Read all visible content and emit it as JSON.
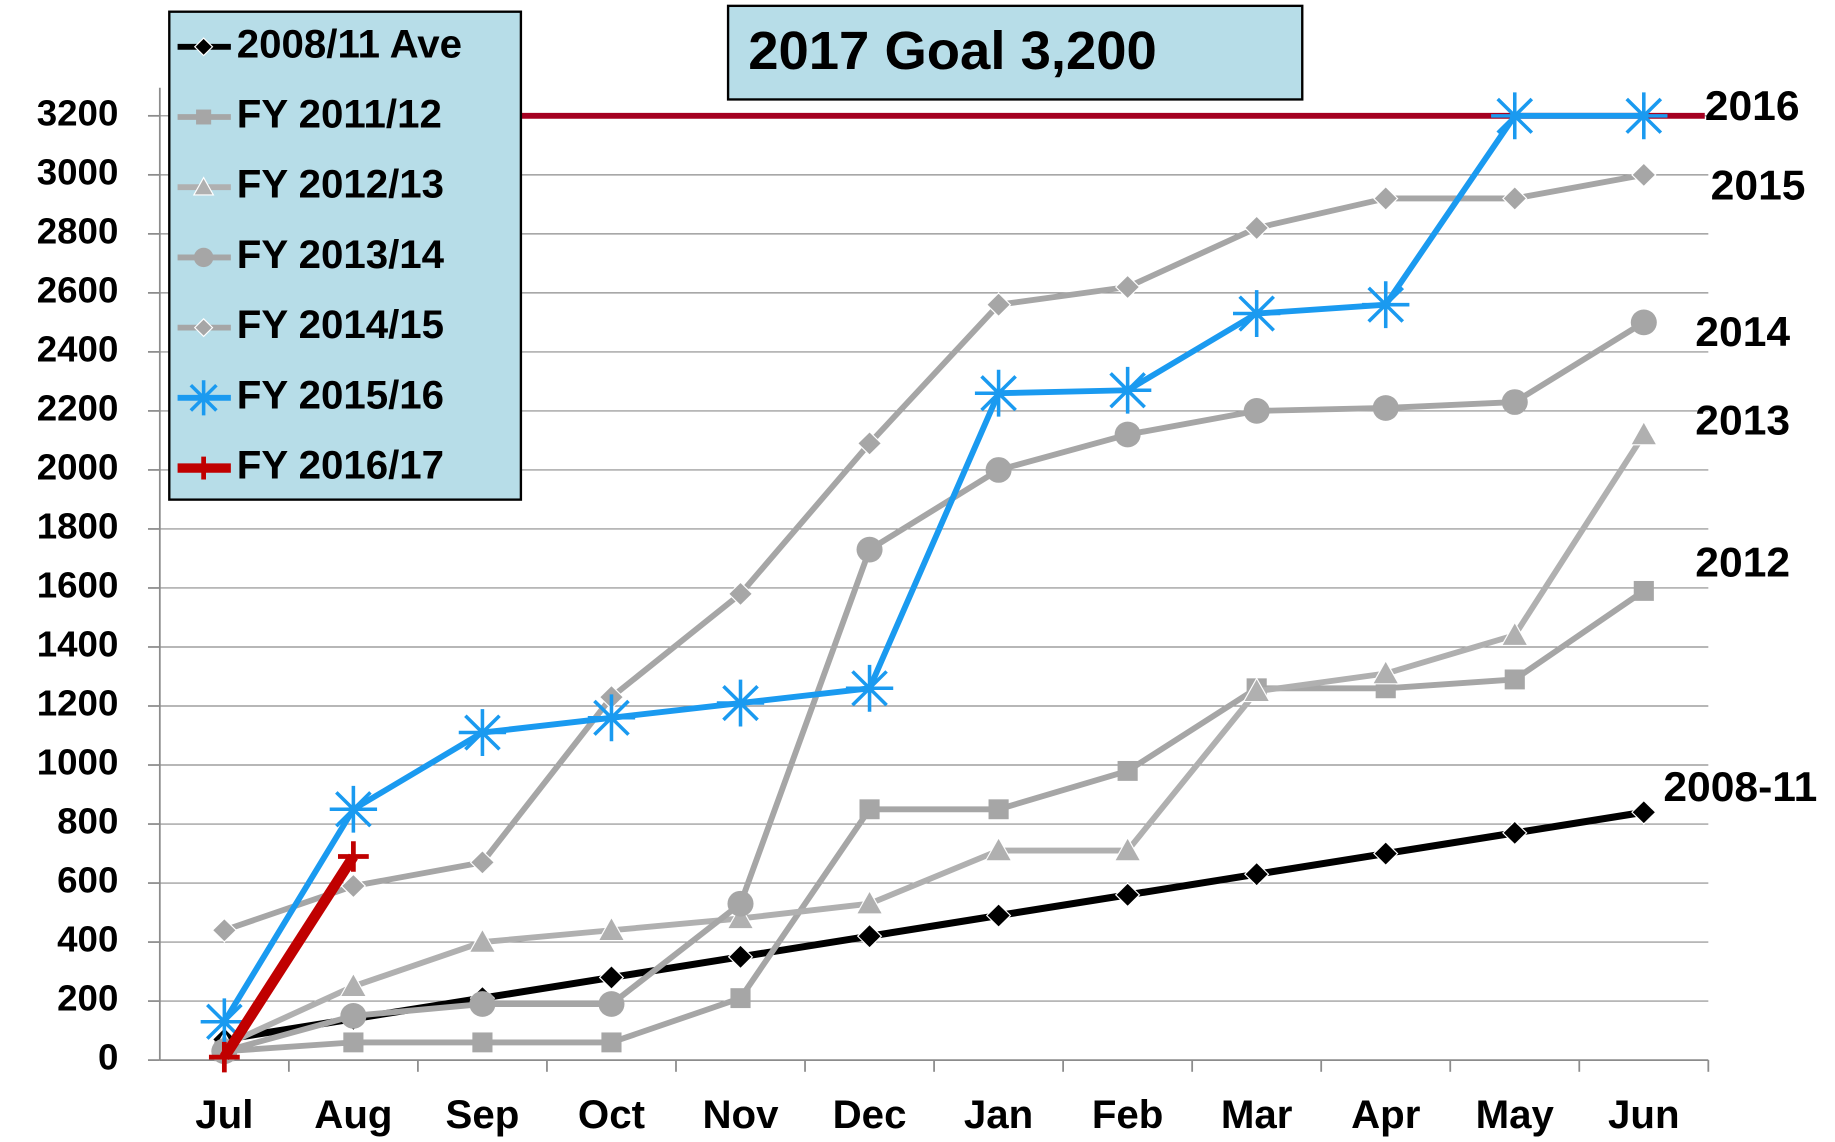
{
  "chart_data": {
    "type": "line",
    "title": "2017 Goal 3,200",
    "goal": 3200,
    "goal_color": "#a50021",
    "categories": [
      "Jul",
      "Aug",
      "Sep",
      "Oct",
      "Nov",
      "Dec",
      "Jan",
      "Feb",
      "Mar",
      "Apr",
      "May",
      "Jun"
    ],
    "series": [
      {
        "name": "2008/11 Ave",
        "color": "#000000",
        "marker": "diamond",
        "values": [
          70,
          140,
          210,
          280,
          350,
          420,
          490,
          560,
          630,
          700,
          770,
          840
        ]
      },
      {
        "name": "FY 2011/12",
        "color": "#a6a6a6",
        "marker": "square",
        "values": [
          30,
          60,
          60,
          60,
          210,
          850,
          850,
          980,
          1260,
          1260,
          1290,
          1590
        ]
      },
      {
        "name": "FY 2012/13",
        "color": "#b0b0b0",
        "marker": "triangle",
        "values": [
          50,
          250,
          400,
          440,
          480,
          530,
          710,
          710,
          1250,
          1310,
          1440,
          2120
        ]
      },
      {
        "name": "FY 2013/14",
        "color": "#a6a6a6",
        "marker": "circle",
        "values": [
          30,
          150,
          190,
          190,
          530,
          1730,
          2000,
          2120,
          2200,
          2210,
          2230,
          2500
        ]
      },
      {
        "name": "FY 2014/15",
        "color": "#a6a6a6",
        "marker": "diamond",
        "values": [
          440,
          590,
          670,
          1230,
          1580,
          2090,
          2560,
          2620,
          2820,
          2920,
          2920,
          3000
        ]
      },
      {
        "name": "FY 2015/16",
        "color": "#1a9af0",
        "marker": "asterisk",
        "values": [
          130,
          850,
          1110,
          1160,
          1210,
          1260,
          2260,
          2270,
          2530,
          2560,
          3200,
          3200
        ]
      },
      {
        "name": "FY 2016/17",
        "color": "#c00000",
        "marker": "plus",
        "values": [
          10,
          690,
          null,
          null,
          null,
          null,
          null,
          null,
          null,
          null,
          null,
          null
        ]
      }
    ],
    "annotations": [
      "2016",
      "2015",
      "2014",
      "2013",
      "2012",
      "2008-11"
    ],
    "ylim": [
      0,
      3200
    ],
    "yticks": [
      0,
      200,
      400,
      600,
      800,
      1000,
      1200,
      1400,
      1600,
      1800,
      2000,
      2200,
      2400,
      2600,
      2800,
      3000,
      3200
    ],
    "grid": true,
    "legend": "upper left"
  }
}
